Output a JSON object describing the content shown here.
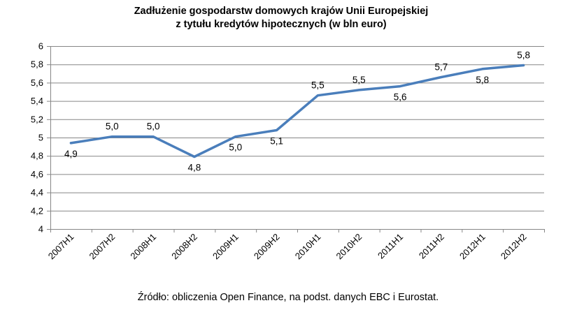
{
  "chart_data": {
    "type": "line",
    "title": [
      "Zadłużenie gospodarstw domowych krajów Unii Europejskiej",
      "z tytułu kredytów hipotecznych (w bln euro)"
    ],
    "categories": [
      "2007H1",
      "2007H2",
      "2008H1",
      "2008H2",
      "2009H1",
      "2009H2",
      "2010H1",
      "2010H2",
      "2011H1",
      "2011H2",
      "2012H1",
      "2012H2"
    ],
    "series": [
      {
        "name": "Zadłużenie",
        "color": "#4a7ebb",
        "values": [
          4.94,
          5.01,
          5.01,
          4.79,
          5.01,
          5.08,
          5.46,
          5.52,
          5.56,
          5.66,
          5.75,
          5.79
        ],
        "labels": [
          "4,9",
          "5,0",
          "5,0",
          "4,8",
          "5,0",
          "5,1",
          "5,5",
          "5,5",
          "5,6",
          "5,7",
          "5,8",
          "5,8"
        ],
        "label_positions": [
          "below",
          "above",
          "above",
          "below",
          "below",
          "below",
          "above",
          "above",
          "below",
          "above",
          "below",
          "above"
        ]
      }
    ],
    "ylim": [
      4,
      6
    ],
    "yticks": [
      4,
      4.2,
      4.4,
      4.6,
      4.8,
      5,
      5.2,
      5.4,
      5.6,
      5.8,
      6
    ],
    "ytick_labels": [
      "4",
      "4,2",
      "4,4",
      "4,6",
      "4,8",
      "5",
      "5,2",
      "5,4",
      "5,6",
      "5,8",
      "6"
    ],
    "grid": true,
    "xlabel": "",
    "ylabel": "",
    "source": "Źródło: obliczenia Open Finance, na podst. danych EBC i Eurostat."
  },
  "colors": {
    "grid": "#868686",
    "axis": "#868686",
    "line": "#4a7ebb"
  }
}
